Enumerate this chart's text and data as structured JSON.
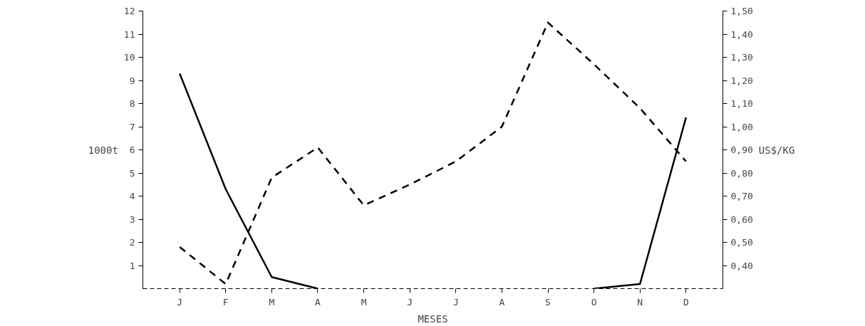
{
  "chart_data": {
    "type": "line",
    "xlabel": "MESES",
    "ylabel": "1000t",
    "y2label": "US$/KG",
    "categories": [
      "J",
      "F",
      "M",
      "A",
      "M",
      "J",
      "J",
      "A",
      "S",
      "O",
      "N",
      "D"
    ],
    "series": [
      {
        "color": "#000000",
        "line_style": "solid",
        "values": [
          9.3,
          4.3,
          0.5,
          0.0,
          null,
          null,
          null,
          null,
          null,
          0.0,
          0.2,
          7.4
        ]
      },
      {
        "color": "#000000",
        "line_style": "dashed",
        "axis": "y2",
        "values": [
          0.48,
          0.32,
          0.78,
          0.91,
          0.66,
          0.75,
          0.85,
          1.0,
          1.45,
          1.27,
          1.08,
          0.85
        ]
      }
    ],
    "ylim": [
      0,
      12
    ],
    "yticks": [
      1,
      2,
      3,
      4,
      5,
      6,
      7,
      8,
      9,
      10,
      11,
      12
    ],
    "y2lim": [
      0.3,
      1.5
    ],
    "y2ticks": [
      {
        "value": 0.4,
        "label": "0,40"
      },
      {
        "value": 0.5,
        "label": "0,50"
      },
      {
        "value": 0.6,
        "label": "0,60"
      },
      {
        "value": 0.7,
        "label": "0,70"
      },
      {
        "value": 0.8,
        "label": "0,80"
      },
      {
        "value": 0.9,
        "label": "0,90"
      },
      {
        "value": 1.0,
        "label": "1,00"
      },
      {
        "value": 1.1,
        "label": "1,10"
      },
      {
        "value": 1.2,
        "label": "1,20"
      },
      {
        "value": 1.3,
        "label": "1,30"
      },
      {
        "value": 1.4,
        "label": "1,40"
      },
      {
        "value": 1.5,
        "label": "1,50"
      }
    ],
    "grid": false,
    "marker": "none"
  }
}
